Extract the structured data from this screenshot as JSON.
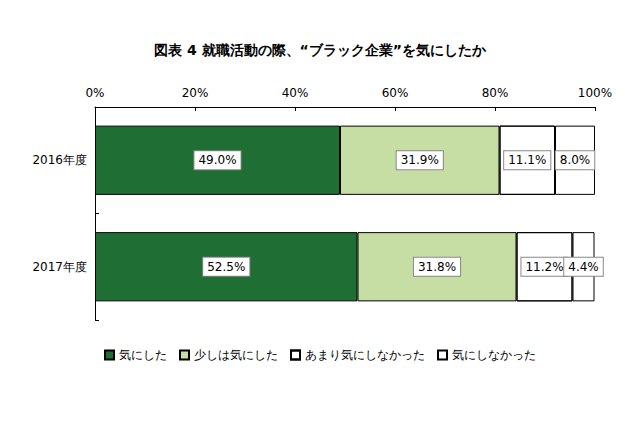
{
  "chart_data": {
    "type": "bar",
    "title": "図表 4 就職活動の際、“ブラック企業”を気にしたか",
    "orientation": "horizontal",
    "stacked": true,
    "data_labels": true,
    "grid": false,
    "legend": "bottom",
    "categories": [
      "2016年度",
      "2017年度"
    ],
    "series": [
      {
        "name": "気にした",
        "color": "#1f6e34",
        "values": [
          49.0,
          52.5
        ],
        "value_labels": [
          "49.0%",
          "52.5%"
        ]
      },
      {
        "name": "少しは気にした",
        "color": "#c6dea3",
        "values": [
          31.9,
          31.8
        ],
        "value_labels": [
          "31.9%",
          "31.8%"
        ]
      },
      {
        "name": "あまり気にしなかった",
        "color": "#ffffff",
        "marker": "dots",
        "values": [
          11.1,
          11.2
        ],
        "value_labels": [
          "11.1%",
          "11.2%"
        ]
      },
      {
        "name": "気にしなかった",
        "color": "#ffffff",
        "values": [
          8.0,
          4.4
        ],
        "value_labels": [
          "8.0%",
          "4.4%"
        ]
      }
    ],
    "xlim": [
      0,
      100
    ],
    "xticks": [
      {
        "value": 0,
        "label": "0%"
      },
      {
        "value": 20,
        "label": "20%"
      },
      {
        "value": 40,
        "label": "40%"
      },
      {
        "value": 60,
        "label": "60%"
      },
      {
        "value": 80,
        "label": "80%"
      },
      {
        "value": 100,
        "label": "100%"
      }
    ]
  }
}
